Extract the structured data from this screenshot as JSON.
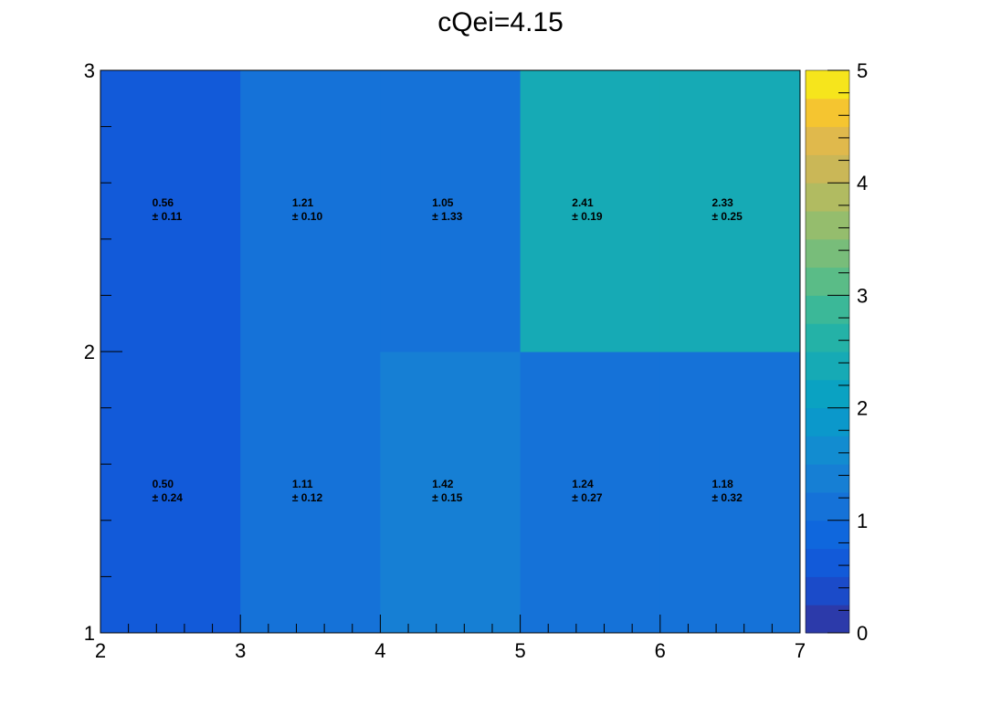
{
  "chart_data": {
    "type": "heatmap",
    "title": "cQei=4.15",
    "xlabel": "",
    "ylabel": "",
    "xlim": [
      2,
      7
    ],
    "ylim": [
      1,
      3
    ],
    "x_ticks": [
      "2",
      "3",
      "4",
      "5",
      "6",
      "7"
    ],
    "y_ticks": [
      "1",
      "2",
      "3"
    ],
    "colorbar": {
      "range": [
        0,
        5
      ],
      "ticks": [
        "0",
        "1",
        "2",
        "3",
        "4",
        "5"
      ]
    },
    "cells": [
      {
        "x": [
          2,
          3
        ],
        "y": [
          1,
          2
        ],
        "value": 0.5,
        "error": 0.24,
        "value_label": "0.50",
        "error_label": "± 0.24"
      },
      {
        "x": [
          3,
          4
        ],
        "y": [
          1,
          2
        ],
        "value": 1.11,
        "error": 0.12,
        "value_label": "1.11",
        "error_label": "± 0.12"
      },
      {
        "x": [
          4,
          5
        ],
        "y": [
          1,
          2
        ],
        "value": 1.42,
        "error": 0.15,
        "value_label": "1.42",
        "error_label": "± 0.15"
      },
      {
        "x": [
          5,
          6
        ],
        "y": [
          1,
          2
        ],
        "value": 1.24,
        "error": 0.27,
        "value_label": "1.24",
        "error_label": "± 0.27"
      },
      {
        "x": [
          6,
          7
        ],
        "y": [
          1,
          2
        ],
        "value": 1.18,
        "error": 0.32,
        "value_label": "1.18",
        "error_label": "± 0.32"
      },
      {
        "x": [
          2,
          3
        ],
        "y": [
          2,
          3
        ],
        "value": 0.56,
        "error": 0.11,
        "value_label": "0.56",
        "error_label": "± 0.11"
      },
      {
        "x": [
          3,
          4
        ],
        "y": [
          2,
          3
        ],
        "value": 1.21,
        "error": 0.1,
        "value_label": "1.21",
        "error_label": "± 0.10"
      },
      {
        "x": [
          4,
          5
        ],
        "y": [
          2,
          3
        ],
        "value": 1.05,
        "error": 1.33,
        "value_label": "1.05",
        "error_label": "± 1.33"
      },
      {
        "x": [
          5,
          6
        ],
        "y": [
          2,
          3
        ],
        "value": 2.41,
        "error": 0.19,
        "value_label": "2.41",
        "error_label": "± 0.19"
      },
      {
        "x": [
          6,
          7
        ],
        "y": [
          2,
          3
        ],
        "value": 2.33,
        "error": 0.25,
        "value_label": "2.33",
        "error_label": "± 0.25"
      }
    ]
  }
}
